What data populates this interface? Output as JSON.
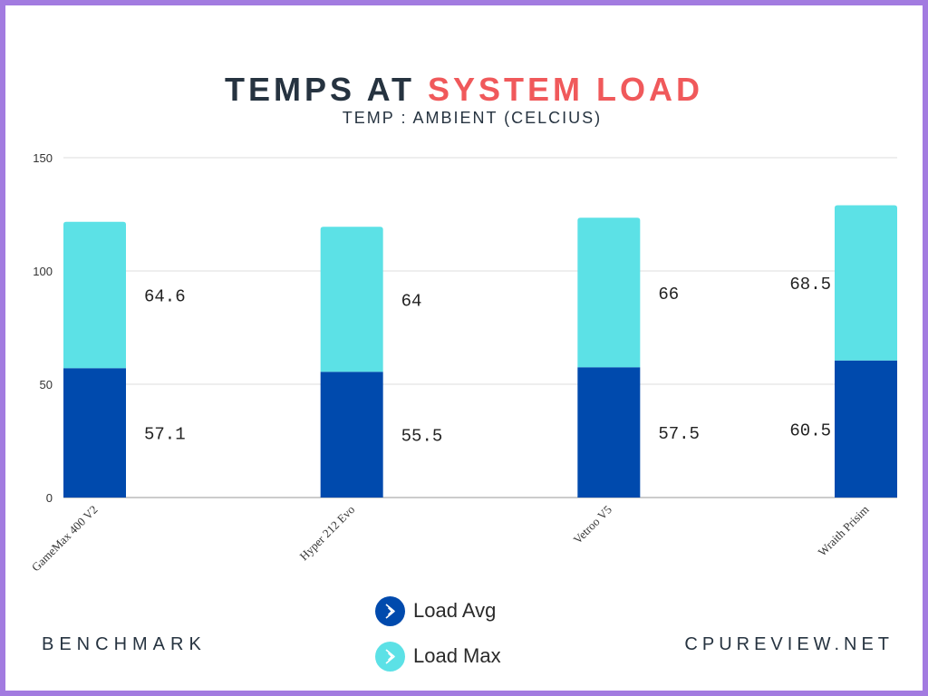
{
  "header": {
    "title_part1": "TEMPS AT",
    "title_part2": "SYSTEM LOAD",
    "subtitle": "TEMP : AMBIENT (CELCIUS)"
  },
  "footer": {
    "left": "BENCHMARK",
    "right": "CPUREVIEW.NET"
  },
  "colors": {
    "load_avg": "#004aad",
    "load_max": "#5ce1e6",
    "title_accent": "#f0595b",
    "title_dark": "#263340",
    "frame": "#a27be0"
  },
  "chart_data": {
    "type": "bar",
    "stacked": true,
    "categories": [
      "GameMax 400 V2",
      "Hyper 212 Evo",
      "Vetroo V5",
      "Wraith Prisim"
    ],
    "series": [
      {
        "name": "Load Avg",
        "values": [
          57.1,
          55.5,
          57.5,
          60.5
        ],
        "color": "#004aad",
        "icon": "play-chevron-icon"
      },
      {
        "name": "Load Max",
        "values": [
          64.6,
          64,
          66,
          68.5
        ],
        "color": "#5ce1e6",
        "icon": "play-chevron-icon"
      }
    ],
    "ylim": [
      0,
      150
    ],
    "yticks": [
      0,
      50,
      100,
      150
    ],
    "grid": true,
    "legend_position": "bottom-center"
  }
}
